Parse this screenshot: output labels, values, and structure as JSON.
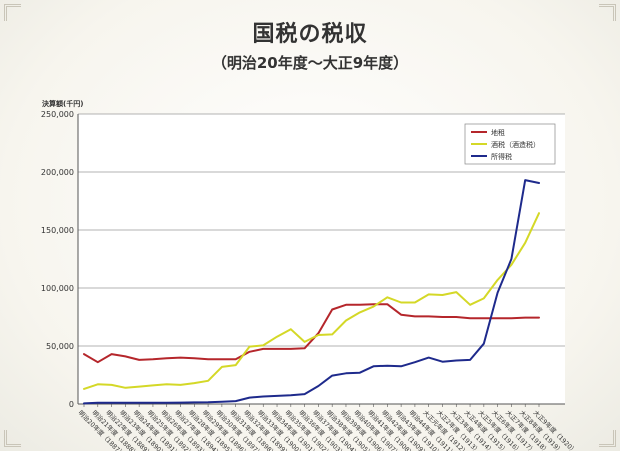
{
  "title": "国税の税収",
  "subtitle": "（明治20年度〜大正9年度）",
  "chart_data": {
    "type": "line",
    "ylabel": "決算額(千円)",
    "ylim": [
      0,
      250000
    ],
    "yticks": [
      0,
      50000,
      100000,
      150000,
      200000,
      250000
    ],
    "ytick_labels": [
      "0",
      "50,000",
      "100,000",
      "150,000",
      "200,000",
      "250,000"
    ],
    "legend_position": "top-right",
    "categories": [
      "明治20年度（1887）",
      "明治21年度（1888）",
      "明治22年度（1889）",
      "明治23年度（1890）",
      "明治24年度（1891）",
      "明治25年度（1892）",
      "明治26年度（1893）",
      "明治27年度（1894）",
      "明治28年度（1895）",
      "明治29年度（1896）",
      "明治30年度（1897）",
      "明治31年度（1898）",
      "明治32年度（1899）",
      "明治33年度（1900）",
      "明治34年度（1901）",
      "明治35年度（1902）",
      "明治36年度（1903）",
      "明治37年度（1904）",
      "明治38年度（1905）",
      "明治39年度（1906）",
      "明治40年度（1907）",
      "明治41年度（1908）",
      "明治42年度（1909）",
      "明治43年度（1910）",
      "明治44年度（1911）",
      "大正元年度（1912）",
      "大正2年度（1913）",
      "大正3年度（1914）",
      "大正4年度（1915）",
      "大正5年度（1916）",
      "大正6年度（1917）",
      "大正7年度（1918）",
      "大正8年度（1919）",
      "大正9年度（1920）"
    ],
    "series": [
      {
        "name": "地租",
        "color": "#b5262b",
        "values": [
          43000,
          36000,
          43000,
          41000,
          38000,
          38500,
          39500,
          40000,
          39500,
          38500,
          38500,
          38500,
          45000,
          47500,
          47500,
          47500,
          48000,
          61000,
          81500,
          85500,
          85500,
          86000,
          86000,
          77000,
          75500,
          75500,
          75000,
          75000,
          74000,
          74000,
          74000,
          74000,
          74500,
          74500
        ]
      },
      {
        "name": "酒税（酒造税）",
        "color": "#d4d827",
        "values": [
          13000,
          17000,
          16500,
          14000,
          15000,
          16000,
          17000,
          16500,
          18000,
          20000,
          32000,
          33500,
          49500,
          50500,
          58000,
          64500,
          53500,
          59500,
          60000,
          72000,
          79000,
          84000,
          92000,
          87500,
          87500,
          94500,
          94000,
          96500,
          85500,
          91000,
          107000,
          120000,
          139000,
          164500
        ]
      },
      {
        "name": "所得税",
        "color": "#1e2a8c",
        "values": [
          500,
          1000,
          1000,
          1000,
          1000,
          1000,
          1000,
          1200,
          1400,
          1500,
          2000,
          2500,
          5500,
          6500,
          7000,
          7500,
          8500,
          15500,
          24500,
          26500,
          27000,
          32500,
          33000,
          32500,
          36000,
          40000,
          36500,
          37500,
          38000,
          52000,
          96000,
          125000,
          193000,
          190500
        ]
      }
    ]
  }
}
